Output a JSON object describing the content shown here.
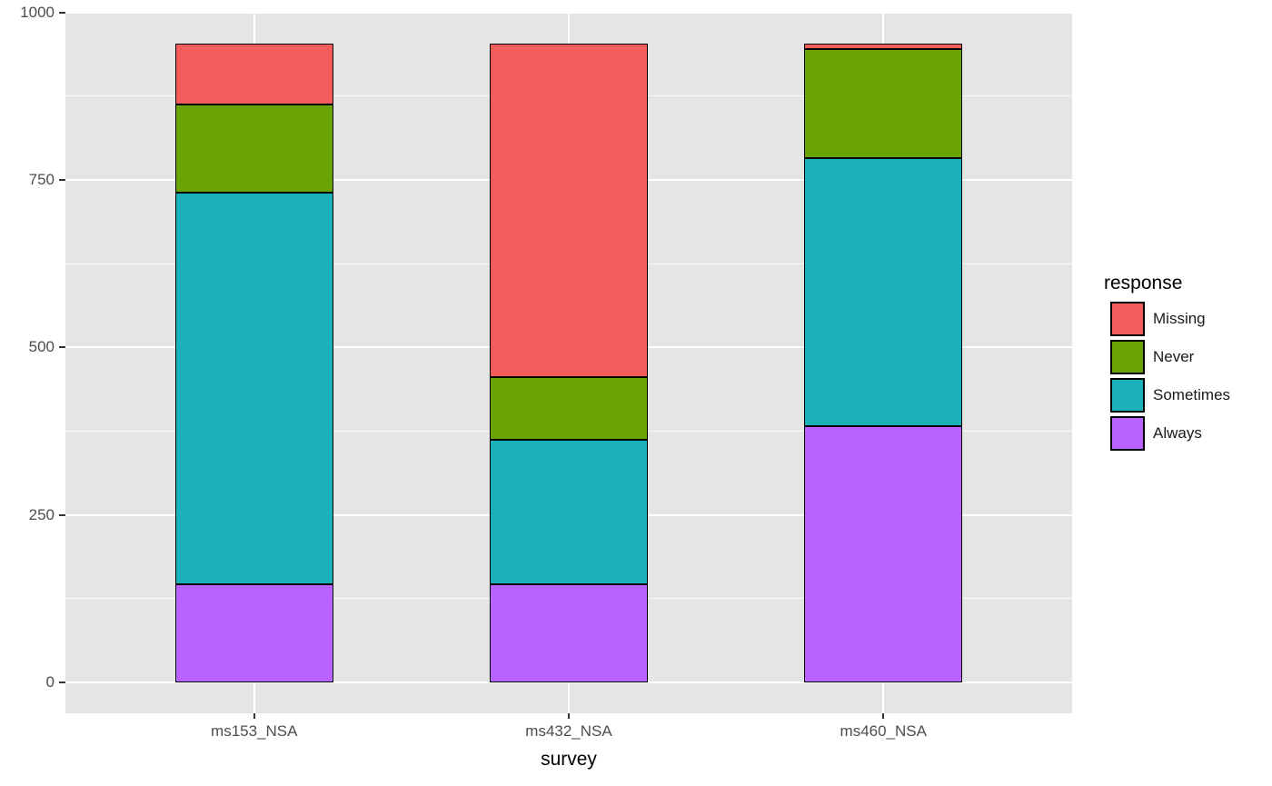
{
  "chart_data": {
    "type": "bar",
    "stacked": true,
    "title": "",
    "xlabel": "survey",
    "ylabel": "",
    "categories": [
      "ms153_NSA",
      "ms432_NSA",
      "ms460_NSA"
    ],
    "series": [
      {
        "name": "Always",
        "color": "#B763FD",
        "values": [
          146,
          146,
          382
        ]
      },
      {
        "name": "Sometimes",
        "color": "#1AB2B8",
        "values": [
          585,
          216,
          401
        ]
      },
      {
        "name": "Never",
        "color": "#69A305",
        "values": [
          131,
          94,
          162
        ]
      },
      {
        "name": "Missing",
        "color": "#F25C5A",
        "values": [
          91,
          497,
          8
        ]
      }
    ],
    "stack_totals": [
      953,
      953,
      953
    ],
    "y_axis": {
      "ticks": [
        0,
        250,
        500,
        750,
        1000
      ],
      "minor_ticks": [
        125,
        375,
        625,
        875
      ],
      "range_shown": [
        -47,
        1002
      ]
    },
    "legend": {
      "title": "response",
      "position": "right",
      "entries": [
        {
          "label": "Missing",
          "color": "#F25C5A"
        },
        {
          "label": "Never",
          "color": "#69A305"
        },
        {
          "label": "Sometimes",
          "color": "#1AB2B8"
        },
        {
          "label": "Always",
          "color": "#B763FD"
        }
      ]
    },
    "style": {
      "figure_background": "#FFFFFF",
      "panel_background": "#E5E5E5",
      "grid_color": "#FFFFFF",
      "bar_outline": "#000000",
      "tick_label_color": "#4D4D4D",
      "axis_title_color": "#000000",
      "legend_text_color": "#1A1A1A"
    }
  }
}
